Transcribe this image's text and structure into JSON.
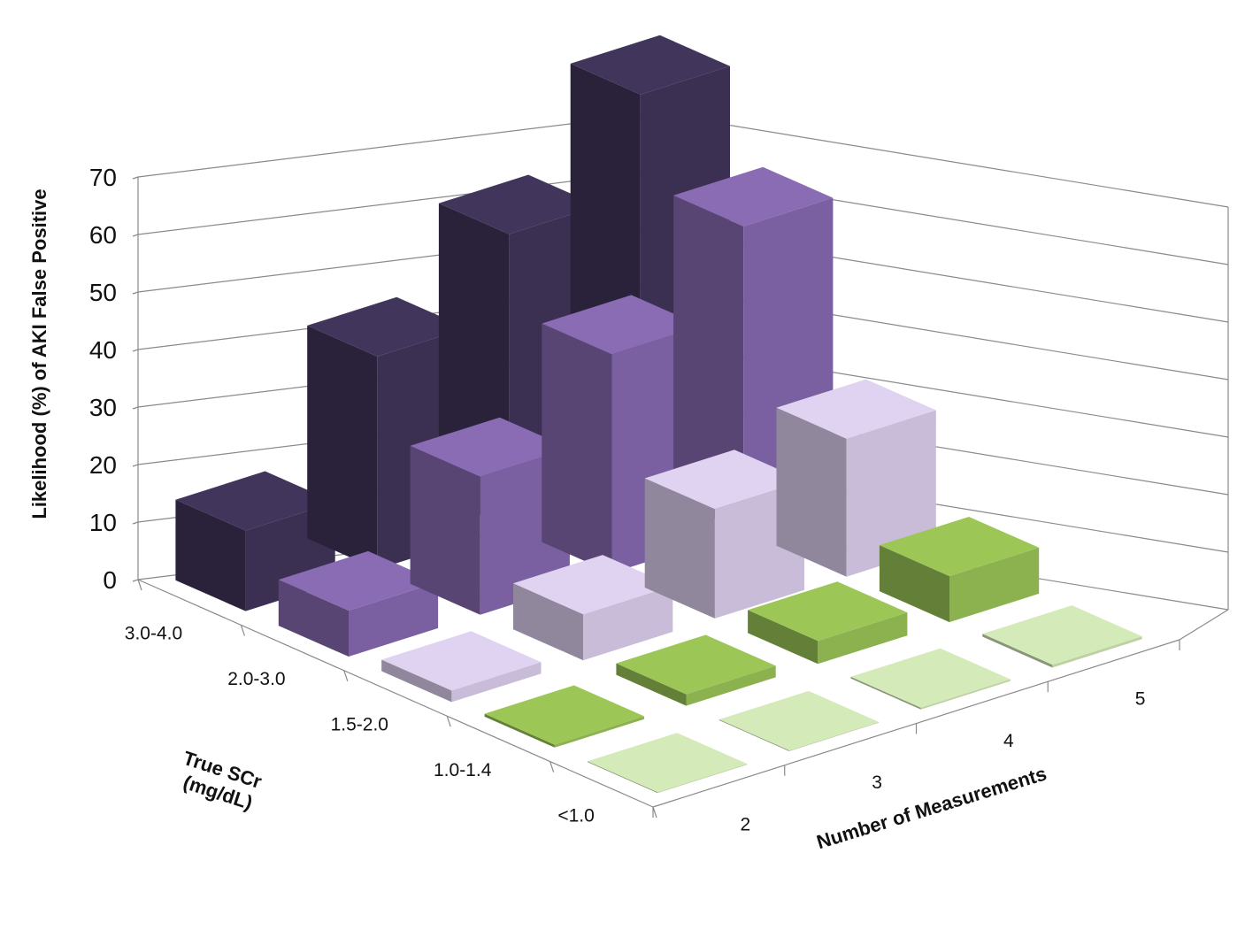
{
  "chart_data": {
    "type": "bar3d",
    "title": "",
    "ylabel": "Likelihood (%) of AKI False Positive",
    "xlabel": "Number of Measurements",
    "depth_label": [
      "True SCr",
      "(mg/dL)"
    ],
    "ylim": [
      0,
      70
    ],
    "yticks": [
      "0",
      "10",
      "20",
      "30",
      "40",
      "50",
      "60",
      "70"
    ],
    "x_categories": [
      "2",
      "3",
      "4",
      "5"
    ],
    "depth_categories": [
      "3.0-4.0",
      "2.0-3.0",
      "1.5-2.0",
      "1.0-1.4",
      "<1.0"
    ],
    "series": [
      {
        "name": "3.0-4.0",
        "color": "#3b2f52",
        "values": [
          14,
          37,
          51,
          68
        ]
      },
      {
        "name": "2.0-3.0",
        "color": "#7a60a0",
        "values": [
          8,
          24,
          38,
          53
        ]
      },
      {
        "name": "1.5-2.0",
        "color": "#c8bcd8",
        "values": [
          2,
          8,
          19,
          24
        ]
      },
      {
        "name": "1.0-1.4",
        "color": "#8bb24e",
        "values": [
          0.5,
          2,
          4,
          8
        ]
      },
      {
        "name": "<1.0",
        "color": "#bdd1a4",
        "values": [
          0.1,
          0.1,
          0.3,
          0.5
        ]
      }
    ]
  }
}
